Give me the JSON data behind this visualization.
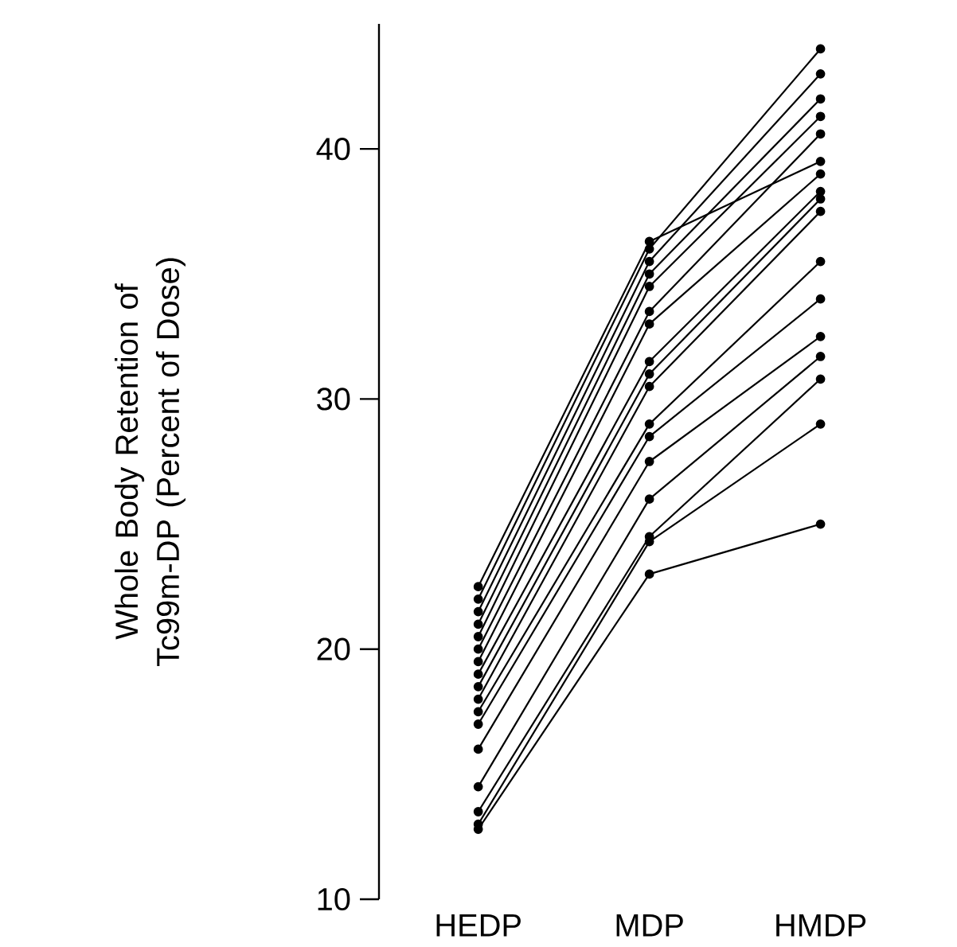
{
  "chart_data": {
    "type": "line",
    "ylabel": "Whole Body Retention of Tc99m-DP (Percent of Dose)",
    "categories": [
      "HEDP",
      "MDP",
      "HMDP"
    ],
    "ylim": [
      10,
      45
    ],
    "yticks": [
      10,
      20,
      30,
      40
    ],
    "grid": false,
    "marker": "circle",
    "line_style": "solid",
    "series": [
      {
        "color": "#000000",
        "values": [
          22.5,
          36.3,
          39.5
        ]
      },
      {
        "color": "#000000",
        "values": [
          22.0,
          36.0,
          44.0
        ]
      },
      {
        "color": "#000000",
        "values": [
          21.5,
          35.5,
          43.0
        ]
      },
      {
        "color": "#000000",
        "values": [
          21.0,
          35.0,
          42.0
        ]
      },
      {
        "color": "#000000",
        "values": [
          20.5,
          34.5,
          41.3
        ]
      },
      {
        "color": "#000000",
        "values": [
          20.0,
          33.5,
          40.6
        ]
      },
      {
        "color": "#000000",
        "values": [
          19.5,
          33.0,
          39.0
        ]
      },
      {
        "color": "#000000",
        "values": [
          19.0,
          31.5,
          38.3
        ]
      },
      {
        "color": "#000000",
        "values": [
          18.5,
          31.0,
          38.0
        ]
      },
      {
        "color": "#000000",
        "values": [
          18.0,
          30.5,
          37.5
        ]
      },
      {
        "color": "#000000",
        "values": [
          17.5,
          29.0,
          35.5
        ]
      },
      {
        "color": "#000000",
        "values": [
          17.0,
          28.5,
          34.0
        ]
      },
      {
        "color": "#000000",
        "values": [
          16.0,
          27.5,
          32.5
        ]
      },
      {
        "color": "#000000",
        "values": [
          14.5,
          26.0,
          31.7
        ]
      },
      {
        "color": "#000000",
        "values": [
          13.5,
          24.5,
          30.8
        ]
      },
      {
        "color": "#000000",
        "values": [
          13.0,
          24.3,
          29.0
        ]
      },
      {
        "color": "#000000",
        "values": [
          12.8,
          23.0,
          25.0
        ]
      }
    ]
  }
}
